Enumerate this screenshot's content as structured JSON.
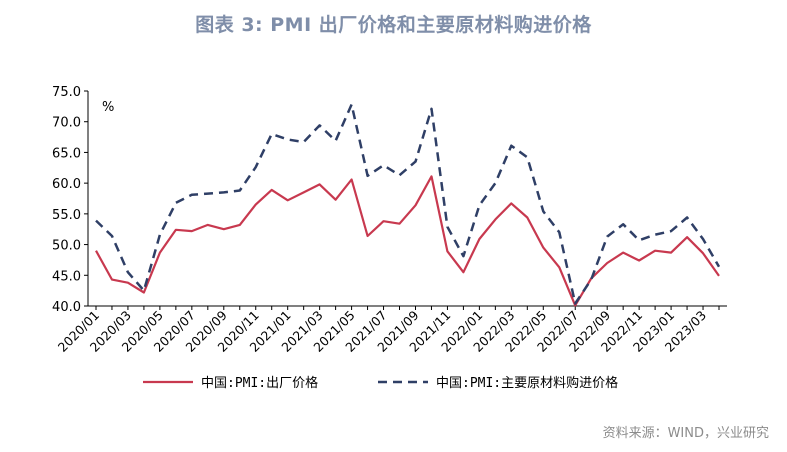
{
  "figure": {
    "title": "图表 3:  PMI 出厂价格和主要原材料购进价格",
    "source": "资料来源：WIND，兴业研究"
  },
  "chart_data": {
    "type": "line",
    "unit": "%",
    "ylim": [
      40,
      75
    ],
    "yticks": [
      "40.0",
      "45.0",
      "50.0",
      "55.0",
      "60.0",
      "65.0",
      "70.0",
      "75.0"
    ],
    "x": [
      "2020/01",
      "2020/02",
      "2020/03",
      "2020/04",
      "2020/05",
      "2020/06",
      "2020/07",
      "2020/08",
      "2020/09",
      "2020/10",
      "2020/11",
      "2020/12",
      "2021/01",
      "2021/02",
      "2021/03",
      "2021/04",
      "2021/05",
      "2021/06",
      "2021/07",
      "2021/08",
      "2021/09",
      "2021/10",
      "2021/11",
      "2021/12",
      "2022/01",
      "2022/02",
      "2022/03",
      "2022/04",
      "2022/05",
      "2022/06",
      "2022/07",
      "2022/08",
      "2022/09",
      "2022/10",
      "2022/11",
      "2022/12",
      "2023/01",
      "2023/02",
      "2023/03",
      "2023/04"
    ],
    "xtick_labels": [
      "2020/01",
      "2020/03",
      "2020/05",
      "2020/07",
      "2020/09",
      "2020/11",
      "2021/01",
      "2021/03",
      "2021/05",
      "2021/07",
      "2021/09",
      "2021/11",
      "2022/01",
      "2022/03",
      "2022/05",
      "2022/07",
      "2022/09",
      "2022/11",
      "2023/01",
      "2023/03"
    ],
    "grid": false,
    "legend_position": "bottom",
    "series": [
      {
        "name": "中国:PMI:出厂价格",
        "color": "#c8394f",
        "style": "solid",
        "values": [
          49.0,
          44.3,
          43.8,
          42.2,
          48.7,
          52.4,
          52.2,
          53.2,
          52.5,
          53.2,
          56.5,
          58.9,
          57.2,
          58.5,
          59.8,
          57.3,
          60.6,
          51.4,
          53.8,
          53.4,
          56.4,
          61.1,
          48.9,
          45.5,
          50.9,
          54.1,
          56.7,
          54.4,
          49.5,
          46.3,
          40.1,
          44.5,
          47.0,
          48.7,
          47.4,
          49.0,
          48.7,
          51.2,
          48.6,
          44.9
        ]
      },
      {
        "name": "中国:PMI:主要原材料购进价格",
        "color": "#2f3f66",
        "style": "dashed",
        "values": [
          53.9,
          51.4,
          45.5,
          42.5,
          51.6,
          56.8,
          58.1,
          58.3,
          58.5,
          58.8,
          62.6,
          68.0,
          67.1,
          66.7,
          69.4,
          66.9,
          72.8,
          61.2,
          62.9,
          61.3,
          63.5,
          72.1,
          52.9,
          48.1,
          56.4,
          60.0,
          66.1,
          64.2,
          55.4,
          52.0,
          40.4,
          44.3,
          51.3,
          53.3,
          50.7,
          51.6,
          52.2,
          54.4,
          50.9,
          46.4
        ]
      }
    ]
  }
}
